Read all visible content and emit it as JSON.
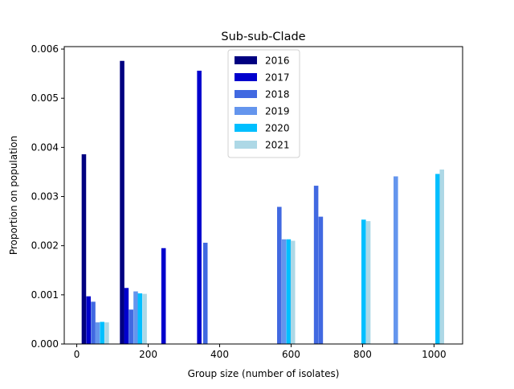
{
  "chart_data": {
    "type": "bar",
    "title": "Sub-sub-Clade",
    "xlabel": "Group size (number of isolates)",
    "ylabel": "Proportion on population",
    "xlim": [
      -35,
      1080
    ],
    "ylim": [
      0,
      0.00605
    ],
    "xticks": [
      0,
      200,
      400,
      600,
      800,
      1000
    ],
    "yticks": [
      0.0,
      0.001,
      0.002,
      0.003,
      0.004,
      0.005,
      0.006
    ],
    "ytick_labels": [
      "0.000",
      "0.001",
      "0.002",
      "0.003",
      "0.004",
      "0.005",
      "0.006"
    ],
    "bar_width": 12.5,
    "grid": false,
    "legend_position": "top-center",
    "series": [
      {
        "name": "2016",
        "color": "#000080",
        "points": [
          [
            20,
            0.00386
          ],
          [
            127,
            0.00576
          ]
        ]
      },
      {
        "name": "2017",
        "color": "#0000cd",
        "points": [
          [
            33,
            0.00097
          ],
          [
            139,
            0.00114
          ],
          [
            243,
            0.00195
          ],
          [
            343,
            0.00556
          ]
        ]
      },
      {
        "name": "2018",
        "color": "#4169e1",
        "points": [
          [
            46,
            0.00086
          ],
          [
            152,
            0.0007
          ],
          [
            360,
            0.00206
          ],
          [
            567,
            0.00279
          ],
          [
            670,
            0.00322
          ],
          [
            683,
            0.00259
          ]
        ]
      },
      {
        "name": "2019",
        "color": "#6495ed",
        "points": [
          [
            58,
            0.00044
          ],
          [
            165,
            0.00107
          ],
          [
            580,
            0.00213
          ],
          [
            893,
            0.00341
          ]
        ]
      },
      {
        "name": "2020",
        "color": "#00bfff",
        "points": [
          [
            71,
            0.00045
          ],
          [
            177,
            0.00103
          ],
          [
            593,
            0.00213
          ],
          [
            803,
            0.00253
          ],
          [
            1010,
            0.00346
          ]
        ]
      },
      {
        "name": "2021",
        "color": "#add8e6",
        "points": [
          [
            84,
            0.00044
          ],
          [
            190,
            0.00102
          ],
          [
            605,
            0.0021
          ],
          [
            816,
            0.0025
          ],
          [
            1022,
            0.00355
          ]
        ]
      }
    ]
  }
}
